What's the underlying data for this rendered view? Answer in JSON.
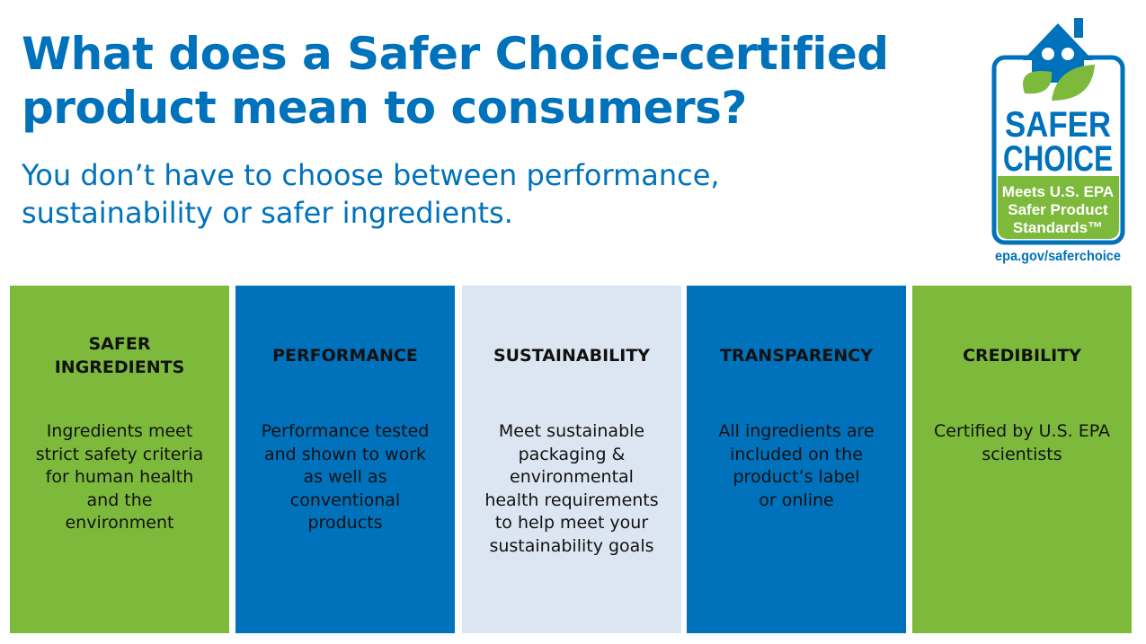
{
  "header": {
    "title": [
      "What does a Safer Choice-certified",
      "product mean to consumers?"
    ],
    "subtitle": [
      "You don’t have to choose between performance,",
      "sustainability or safer ingredients."
    ]
  },
  "logo": {
    "word1": "SAFER",
    "word2": "CHOICE",
    "badge": [
      "Meets U.S. EPA",
      "Safer Product",
      "Standards™"
    ],
    "url": "epa.gov/saferchoice"
  },
  "columns": [
    {
      "heading": [
        "SAFER",
        "INGREDIENTS"
      ],
      "body": [
        "Ingredients meet",
        "strict safety criteria",
        "for human health",
        "and the",
        "environment"
      ],
      "color": "#7dba3c"
    },
    {
      "heading": [
        "PERFORMANCE"
      ],
      "body": [
        "Performance tested",
        "and shown to work",
        "as well as",
        "conventional",
        "products"
      ],
      "color": "#0071bb"
    },
    {
      "heading": [
        "SUSTAINABILITY"
      ],
      "body": [
        "Meet sustainable",
        "packaging &",
        "environmental",
        "health requirements",
        "to help meet your",
        "sustainability goals"
      ],
      "color": "#dce6f2"
    },
    {
      "heading": [
        "TRANSPARENCY"
      ],
      "body": [
        "All ingredients are",
        "included on the",
        "product’s label",
        "or online"
      ],
      "color": "#0071bb"
    },
    {
      "heading": [
        "CREDIBILITY"
      ],
      "body": [
        "Certified by U.S. EPA",
        "scientists"
      ],
      "color": "#7dba3c"
    }
  ]
}
